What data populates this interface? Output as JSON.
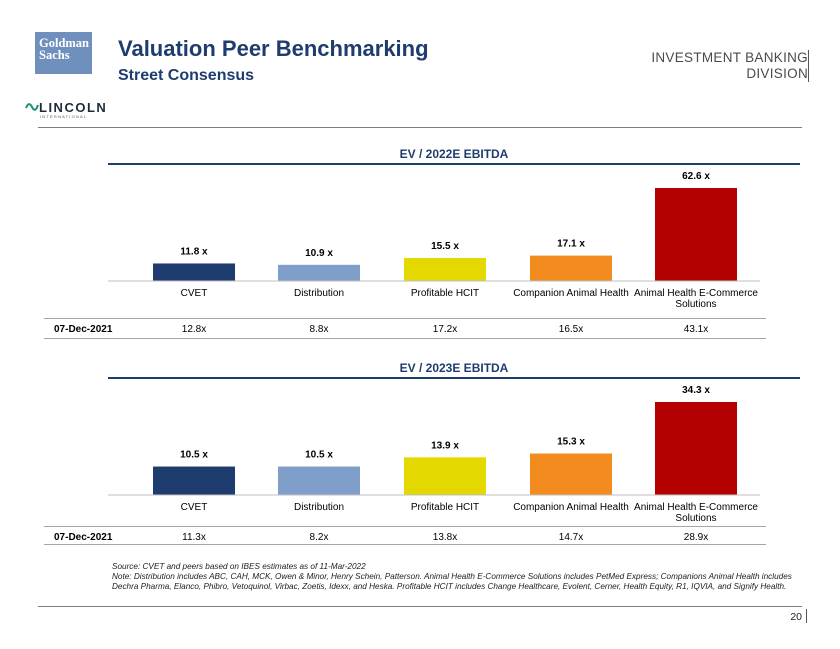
{
  "header": {
    "logo_line1": "Goldman",
    "logo_line2": "Sachs",
    "title": "Valuation Peer Benchmarking",
    "subtitle": "Street Consensus",
    "division_line1": "INVESTMENT BANKING",
    "division_line2": "DIVISION",
    "partner_logo": "LINCOLN",
    "partner_tagline": "INTERNATIONAL"
  },
  "chart_data": [
    {
      "type": "bar",
      "title": "EV / 2022E EBITDA",
      "categories": [
        "CVET",
        "Distribution",
        "Profitable HCIT",
        "Companion Animal Health",
        "Animal Health E-Commerce Solutions"
      ],
      "values": [
        11.8,
        10.9,
        15.5,
        17.1,
        62.6
      ],
      "value_labels": [
        "11.8 x",
        "10.9 x",
        "15.5 x",
        "17.1 x",
        "62.6 x"
      ],
      "colors": [
        "#1f3c6e",
        "#7f9ec9",
        "#e3d800",
        "#f28c1e",
        "#b30000"
      ],
      "ylim": [
        0,
        62.6
      ],
      "comparison_row": {
        "label": "07-Dec-2021",
        "values": [
          "12.8x",
          "8.8x",
          "17.2x",
          "16.5x",
          "43.1x"
        ]
      }
    },
    {
      "type": "bar",
      "title": "EV / 2023E EBITDA",
      "categories": [
        "CVET",
        "Distribution",
        "Profitable HCIT",
        "Companion Animal Health",
        "Animal Health E-Commerce Solutions"
      ],
      "values": [
        10.5,
        10.5,
        13.9,
        15.3,
        34.3
      ],
      "value_labels": [
        "10.5 x",
        "10.5 x",
        "13.9 x",
        "15.3 x",
        "34.3 x"
      ],
      "colors": [
        "#1f3c6e",
        "#7f9ec9",
        "#e3d800",
        "#f28c1e",
        "#b30000"
      ],
      "ylim": [
        0,
        34.3
      ],
      "comparison_row": {
        "label": "07-Dec-2021",
        "values": [
          "11.3x",
          "8.2x",
          "13.8x",
          "14.7x",
          "28.9x"
        ]
      }
    }
  ],
  "footer": {
    "source": "Source: CVET and peers based on IBES estimates as of 11-Mar-2022",
    "note": "Note: Distribution includes ABC, CAH, MCK, Owen & Minor, Henry Schein, Patterson. Animal Health E-Commerce Solutions includes PetMed Express; Companions Animal Health includes Dechra Pharma, Elanco, Phibro, Vetoquinol, Virbac, Zoetis, Idexx, and Heska. Profitable HCIT includes Change Healthcare, Evolent, Cerner, Health Equity, R1, IQVIA, and Signify Health.",
    "page_number": "20"
  }
}
